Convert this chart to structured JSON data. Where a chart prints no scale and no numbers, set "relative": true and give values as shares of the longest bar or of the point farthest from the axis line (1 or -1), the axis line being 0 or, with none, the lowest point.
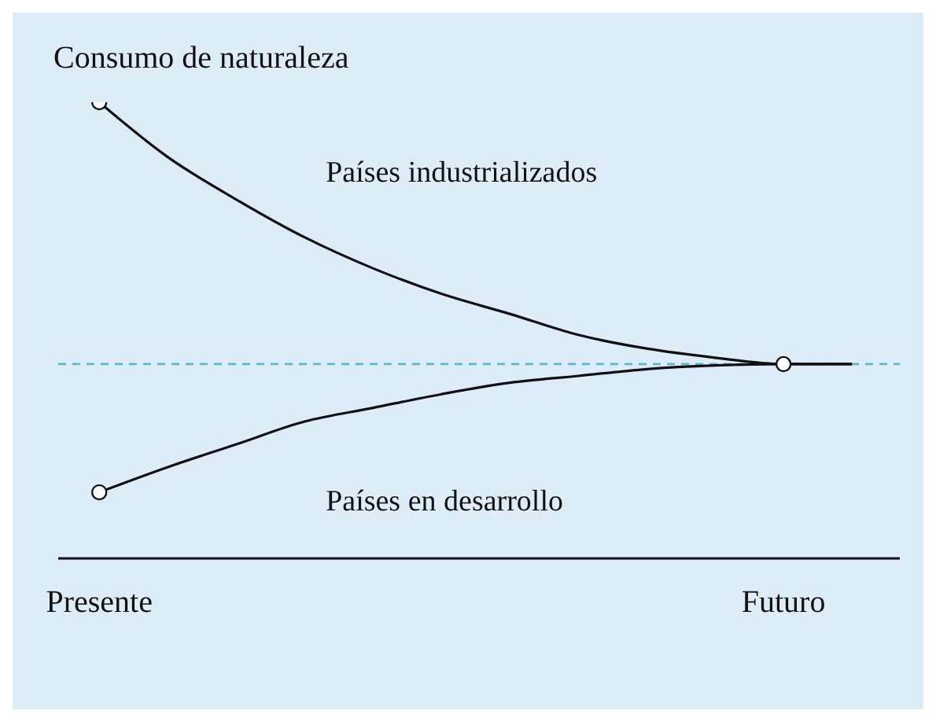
{
  "chart_data": {
    "type": "line",
    "relative": true,
    "ylabel": "Consumo de naturaleza",
    "categories": [
      "Presente",
      null,
      null,
      null,
      null,
      null,
      null,
      null,
      null,
      null,
      "Futuro",
      null
    ],
    "series": [
      {
        "name": "Países industrializados",
        "color": "#111111",
        "values": [
          1.0,
          0.88,
          0.787,
          0.704,
          0.636,
          0.58,
          0.536,
          0.49,
          0.46,
          0.44,
          0.426,
          0.426
        ]
      },
      {
        "name": "Países en desarrollo",
        "color": "#111111",
        "values": [
          0.145,
          0.2,
          0.25,
          0.3,
          0.33,
          0.36,
          0.385,
          0.4,
          0.415,
          0.423,
          0.426,
          0.426
        ]
      },
      {
        "type": "scatter",
        "color": "#111111",
        "marker": "circle",
        "values": [
          1.0,
          null,
          null,
          null,
          null,
          null,
          null,
          null,
          null,
          null,
          0.426,
          null
        ]
      },
      {
        "type": "scatter",
        "color": "#111111",
        "marker": "circle",
        "values": [
          0.145,
          null,
          null,
          null,
          null,
          null,
          null,
          null,
          null,
          null,
          null,
          null
        ]
      }
    ],
    "ref_lines": [
      {
        "axis": "y",
        "value": 0.426,
        "color": "#5bb8c8",
        "line_style": "dashed"
      }
    ],
    "marker": "none",
    "line_style": "solid",
    "grid": false,
    "legend": false
  }
}
